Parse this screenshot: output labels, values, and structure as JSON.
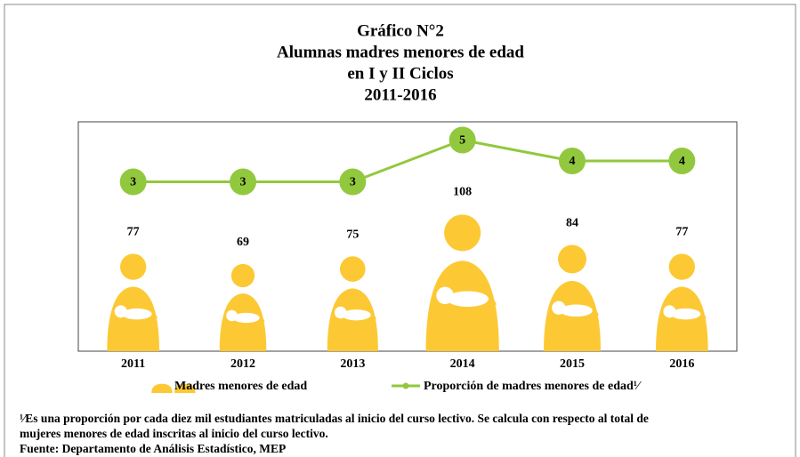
{
  "chart_data": {
    "type": "pictogram-line",
    "title": [
      "Gráfico N°2",
      "Alumnas madres menores de edad",
      "en I y II Ciclos",
      "2011-2016"
    ],
    "categories": [
      "2011",
      "2012",
      "2013",
      "2014",
      "2015",
      "2016"
    ],
    "series": [
      {
        "name": "Madres menores de edad",
        "color": "#fcc934",
        "values": [
          77,
          69,
          75,
          108,
          84,
          77
        ]
      },
      {
        "name": "Proporción de madres menores de edad¹⁄",
        "color": "#92c83e",
        "values": [
          3,
          3,
          3,
          5,
          4,
          4
        ]
      }
    ],
    "footnote": [
      "¹⁄Es una proporción por cada diez mil estudiantes matriculadas al inicio del curso lectivo. Se calcula con respecto al total de",
      "mujeres menores de edad inscritas al inicio del curso lectivo."
    ],
    "source": "Fuente: Departamento de Análisis Estadístico, MEP"
  }
}
